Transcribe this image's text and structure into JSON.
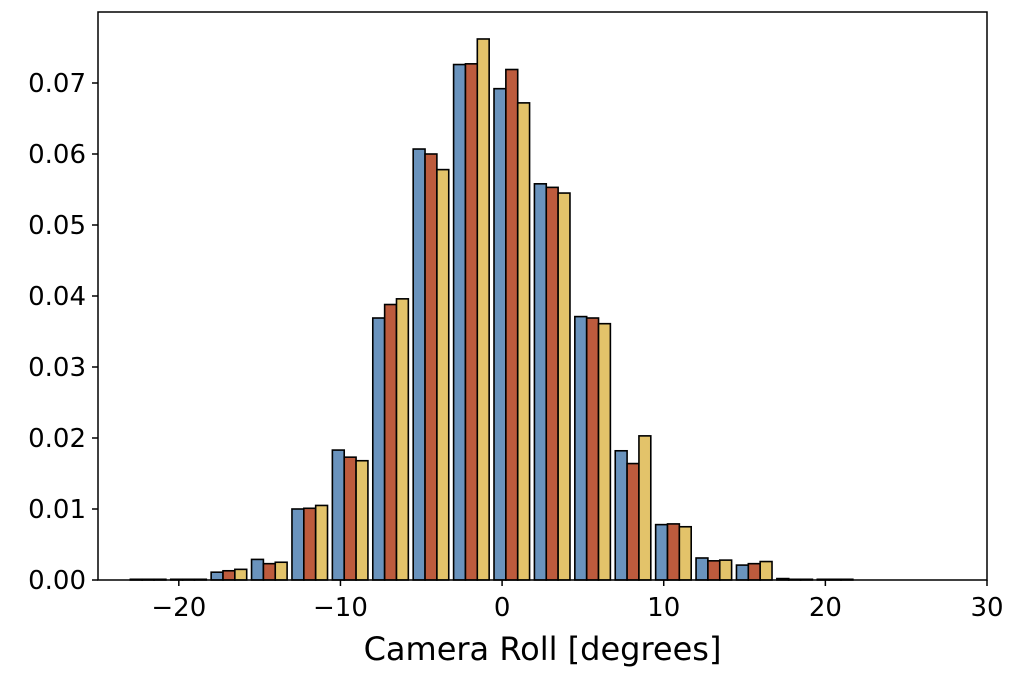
{
  "chart_data": {
    "type": "bar",
    "xlabel": "Camera Roll [degrees]",
    "ylabel": "",
    "title": "",
    "xlim": [
      -25,
      30
    ],
    "ylim": [
      0,
      0.08
    ],
    "grid": false,
    "x_ticks": [
      -20,
      -10,
      0,
      10,
      20,
      30
    ],
    "x_tick_labels": [
      "−20",
      "−10",
      "0",
      "10",
      "20",
      "30"
    ],
    "y_ticks": [
      0,
      0.01,
      0.02,
      0.03,
      0.04,
      0.05,
      0.06,
      0.07
    ],
    "y_tick_labels": [
      "0.00",
      "0.01",
      "0.02",
      "0.03",
      "0.04",
      "0.05",
      "0.06",
      "0.07"
    ],
    "bin_edges": [
      -23,
      -20.5,
      -18,
      -15.5,
      -13,
      -10.5,
      -8,
      -5.5,
      -3,
      -0.5,
      2,
      4.5,
      7,
      9.5,
      12,
      14.5,
      17,
      19.5,
      22,
      24.5,
      27
    ],
    "series": [
      {
        "color": "#6a93bd",
        "values": [
          0.0001,
          0.0001,
          0.0011,
          0.0029,
          0.01,
          0.0183,
          0.0369,
          0.0607,
          0.0726,
          0.0692,
          0.0558,
          0.0371,
          0.0182,
          0.0078,
          0.0031,
          0.0021,
          0.0002,
          0.0001,
          0.0,
          0.0
        ]
      },
      {
        "color": "#bd5b3d",
        "values": [
          0.0001,
          0.0001,
          0.0013,
          0.0023,
          0.0101,
          0.0173,
          0.0388,
          0.06,
          0.0727,
          0.0719,
          0.0553,
          0.0369,
          0.0164,
          0.0079,
          0.0027,
          0.0023,
          0.0001,
          0.0001,
          0.0,
          0.0
        ]
      },
      {
        "color": "#e3c36a",
        "values": [
          0.0001,
          0.0001,
          0.0015,
          0.0025,
          0.0105,
          0.0168,
          0.0396,
          0.0578,
          0.0762,
          0.0672,
          0.0545,
          0.0361,
          0.0203,
          0.0075,
          0.0028,
          0.0026,
          0.0001,
          0.0001,
          0.0,
          0.0
        ]
      }
    ]
  }
}
